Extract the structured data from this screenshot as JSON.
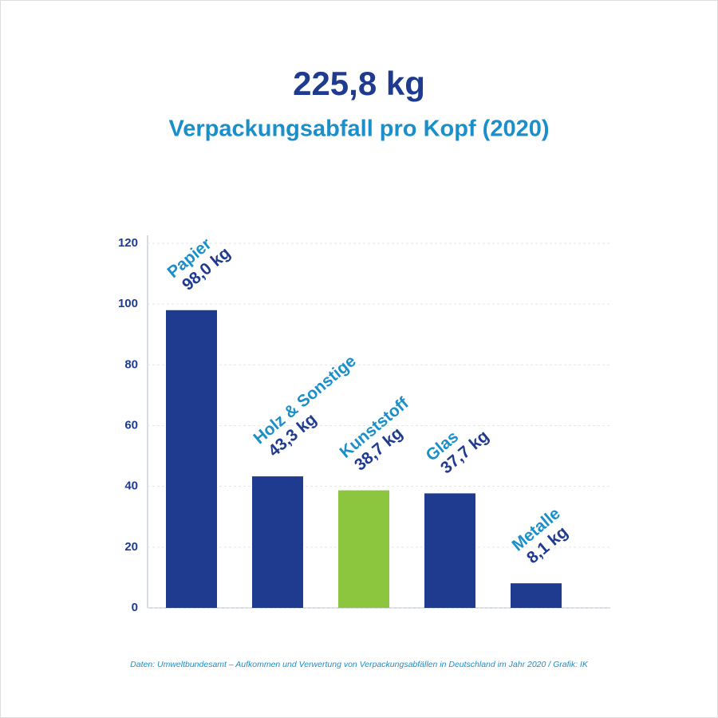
{
  "chart_data": {
    "type": "bar",
    "title": "225,8 kg",
    "subtitle": "Verpackungsabfall pro Kopf (2020)",
    "categories": [
      "Papier",
      "Holz & Sonstige",
      "Kunststoff",
      "Glas",
      "Metalle"
    ],
    "values": [
      98.0,
      43.3,
      38.7,
      37.7,
      8.1
    ],
    "value_labels": [
      "98,0 kg",
      "43,3 kg",
      "38,7 kg",
      "37,7 kg",
      "8,1 kg"
    ],
    "colors": [
      "#1f3b8f",
      "#1f3b8f",
      "#8cc63f",
      "#1f3b8f",
      "#1f3b8f"
    ],
    "ylim": [
      0,
      120
    ],
    "yticks": [
      0,
      20,
      40,
      60,
      80,
      100,
      120
    ],
    "grid": true,
    "source": "Daten: Umweltbundesamt – Aufkommen und Verwertung von Verpackungsabfällen in Deutschland im Jahr 2020 / Grafik: IK"
  }
}
